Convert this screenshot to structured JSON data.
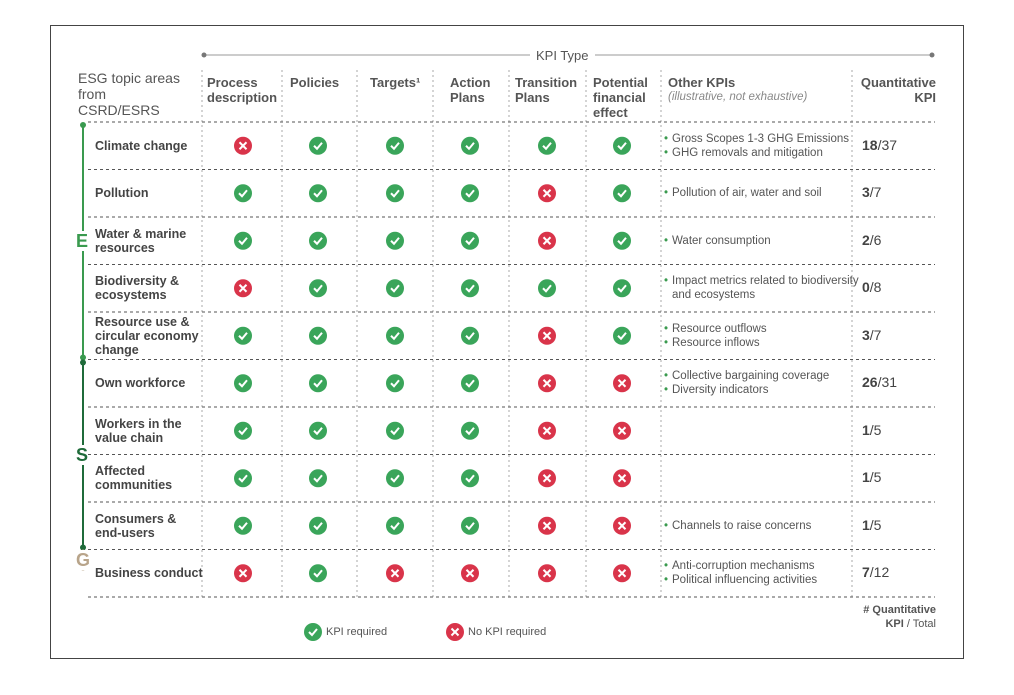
{
  "header": {
    "kpi_type": "KPI Type",
    "topic_label": "ESG topic areas from CSRD/ESRS",
    "columns": [
      "Process description",
      "Policies",
      "Targets¹",
      "Action Plans",
      "Transition Plans",
      "Potential financial effect"
    ],
    "other_kpis": "Other KPIs",
    "other_kpis_note": "(illustrative, not exhaustive)",
    "quantitative": "Quantitative KPI"
  },
  "groups": [
    {
      "letter": "E",
      "color": "#3a9a4f",
      "rows": [
        {
          "topic": "Climate change",
          "required": [
            false,
            true,
            true,
            true,
            true,
            true
          ],
          "other_kpis": [
            "Gross Scopes 1-3 GHG Emissions",
            "GHG removals and mitigation"
          ],
          "kpi": "18",
          "total": "/37"
        },
        {
          "topic": "Pollution",
          "required": [
            true,
            true,
            true,
            true,
            false,
            true
          ],
          "other_kpis": [
            "Pollution of air, water and soil"
          ],
          "kpi": "3",
          "total": "/7"
        },
        {
          "topic": "Water & marine resources",
          "required": [
            true,
            true,
            true,
            true,
            false,
            true
          ],
          "other_kpis": [
            "Water consumption"
          ],
          "kpi": "2",
          "total": "/6"
        },
        {
          "topic": "Biodiversity & ecosystems",
          "required": [
            false,
            true,
            true,
            true,
            true,
            true
          ],
          "other_kpis": [
            "Impact metrics related to biodiversity and ecosystems"
          ],
          "kpi": "0",
          "total": "/8"
        },
        {
          "topic": "Resource use & circular economy change",
          "required": [
            true,
            true,
            true,
            true,
            false,
            true
          ],
          "other_kpis": [
            "Resource outflows",
            "Resource inflows"
          ],
          "kpi": "3",
          "total": "/7"
        }
      ]
    },
    {
      "letter": "S",
      "color": "#1f6b3a",
      "rows": [
        {
          "topic": "Own workforce",
          "required": [
            true,
            true,
            true,
            true,
            false,
            false
          ],
          "other_kpis": [
            "Collective bargaining coverage",
            "Diversity indicators"
          ],
          "kpi": "26",
          "total": "/31"
        },
        {
          "topic": "Workers in the value chain",
          "required": [
            true,
            true,
            true,
            true,
            false,
            false
          ],
          "other_kpis": [],
          "kpi": "1",
          "total": "/5"
        },
        {
          "topic": "Affected communities",
          "required": [
            true,
            true,
            true,
            true,
            false,
            false
          ],
          "other_kpis": [],
          "kpi": "1",
          "total": "/5"
        },
        {
          "topic": "Consumers & end-users",
          "required": [
            true,
            true,
            true,
            true,
            false,
            false
          ],
          "other_kpis": [
            "Channels to raise concerns"
          ],
          "kpi": "1",
          "total": "/5"
        }
      ]
    },
    {
      "letter": "G",
      "color": "#b8a48a",
      "rows": [
        {
          "topic": "Business conduct",
          "required": [
            false,
            true,
            false,
            false,
            false,
            false
          ],
          "other_kpis": [
            "Anti-corruption mechanisms",
            "Political influencing activities"
          ],
          "kpi": "7",
          "total": "/12"
        }
      ]
    }
  ],
  "footer": {
    "line1": "# Quantitative",
    "kpi": "KPI",
    "total": " / Total"
  },
  "legend": {
    "required": "KPI required",
    "not_required": "No KPI required"
  }
}
